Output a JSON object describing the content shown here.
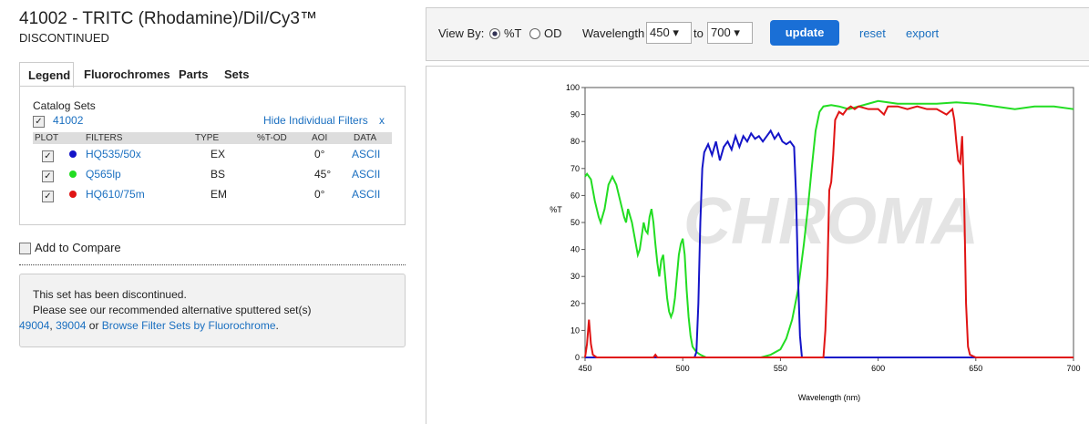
{
  "header": {
    "title": "41002 - TRITC (Rhodamine)/DiI/Cy3™",
    "status": "DISCONTINUED"
  },
  "tabs": [
    "Legend",
    "Fluorochromes",
    "Parts",
    "Sets"
  ],
  "legend": {
    "heading": "Catalog Sets",
    "set": "41002",
    "hide_link": "Hide Individual Filters",
    "close": "x",
    "table": {
      "columns": [
        "PLOT",
        "FILTERS",
        "TYPE",
        "%T-OD",
        "AOI",
        "DATA"
      ],
      "rows": [
        [
          "HQ535/50x",
          "EX",
          "0°",
          "ASCII"
        ],
        [
          "Q565lp",
          "BS",
          "45°",
          "ASCII"
        ],
        [
          "HQ610/75m",
          "EM",
          "0°",
          "ASCII"
        ]
      ]
    }
  },
  "compare": "Add to Compare",
  "notice": {
    "line1": "This set has been discontinued.",
    "line2": "Please see our recommended alternative sputtered set(s)",
    "link1": "49004",
    "sep1": ",",
    "link2": "39004",
    "sep2": "or",
    "link3": "Browse Filter Sets by Fluorochrome",
    "end": "."
  },
  "toolbar": {
    "view_by": "View By:",
    "options": [
      "%T",
      "OD"
    ],
    "wavelength": "Wavelength",
    "from": "450",
    "to_word": "to",
    "to": "700",
    "update": "update",
    "reset": "reset",
    "export": "export"
  },
  "chart_data": {
    "type": "line",
    "x_label": "Wavelength (nm)",
    "y_label": "%T",
    "watermark": "CHROMA",
    "xlim": [
      450,
      700
    ],
    "ylim": [
      0,
      100
    ],
    "xticks": [
      450,
      500,
      550,
      600,
      650,
      700
    ],
    "yticks": [
      0,
      10,
      20,
      30,
      40,
      50,
      60,
      70,
      80,
      90,
      100
    ],
    "series": [
      {
        "color": "#1414c8",
        "x": [
          450,
          506,
          507,
          508,
          509,
          510,
          511,
          513,
          515,
          517,
          519,
          521,
          523,
          525,
          527,
          529,
          531,
          533,
          535,
          537,
          539,
          541,
          543,
          545,
          547,
          549,
          551,
          553,
          555,
          557,
          558,
          559,
          560,
          561,
          700
        ],
        "values": [
          0,
          0,
          2,
          20,
          50,
          70,
          76,
          79,
          75,
          80,
          73,
          78,
          80,
          77,
          82,
          78,
          82,
          80,
          83,
          81,
          82,
          80,
          82,
          84,
          81,
          83,
          80,
          79,
          80,
          78,
          60,
          30,
          8,
          0,
          0
        ]
      },
      {
        "color": "#22dd22",
        "x": [
          450,
          451,
          453,
          455,
          457,
          458,
          460,
          462,
          464,
          466,
          468,
          470,
          471,
          472,
          474,
          476,
          477,
          478,
          479,
          480,
          481,
          482,
          483,
          484,
          485,
          486,
          487,
          488,
          489,
          490,
          491,
          492,
          493,
          494,
          495,
          496,
          497,
          498,
          499,
          500,
          501,
          502,
          503,
          504,
          505,
          507,
          509,
          512,
          540,
          545,
          550,
          553,
          556,
          559,
          562,
          564,
          566,
          568,
          570,
          572,
          576,
          580,
          585,
          590,
          595,
          600,
          605,
          610,
          620,
          630,
          640,
          650,
          660,
          670,
          680,
          690,
          700
        ],
        "values": [
          67,
          68,
          66,
          58,
          52,
          50,
          55,
          64,
          67,
          64,
          58,
          52,
          50,
          55,
          50,
          42,
          38,
          40,
          45,
          50,
          47,
          46,
          52,
          55,
          50,
          42,
          35,
          30,
          36,
          38,
          30,
          22,
          17,
          15,
          17,
          22,
          30,
          38,
          42,
          44,
          38,
          25,
          15,
          8,
          4,
          2,
          1,
          0,
          0,
          1,
          3,
          7,
          14,
          25,
          42,
          55,
          70,
          84,
          91,
          93,
          93.5,
          93,
          92,
          93,
          94,
          95,
          94.5,
          94,
          94,
          94,
          94.5,
          94,
          93,
          92,
          93,
          93,
          92
        ]
      },
      {
        "color": "#e01414",
        "x": [
          450,
          451,
          452,
          453,
          454,
          456,
          485,
          486,
          487,
          572,
          573,
          574,
          575,
          576,
          577,
          578,
          580,
          582,
          584,
          586,
          588,
          590,
          595,
          600,
          603,
          605,
          610,
          615,
          620,
          625,
          630,
          635,
          638,
          639,
          640,
          641,
          642,
          643,
          644,
          645,
          646,
          647,
          650,
          700
        ],
        "values": [
          0,
          5,
          14,
          5,
          1,
          0,
          0,
          1,
          0,
          0,
          10,
          30,
          62,
          65,
          75,
          88,
          91,
          90,
          92,
          93,
          92,
          93,
          92,
          92,
          90,
          93,
          93,
          92,
          93,
          92,
          92,
          90,
          92,
          88,
          80,
          73,
          72,
          82,
          60,
          20,
          4,
          1,
          0,
          0
        ]
      }
    ]
  }
}
